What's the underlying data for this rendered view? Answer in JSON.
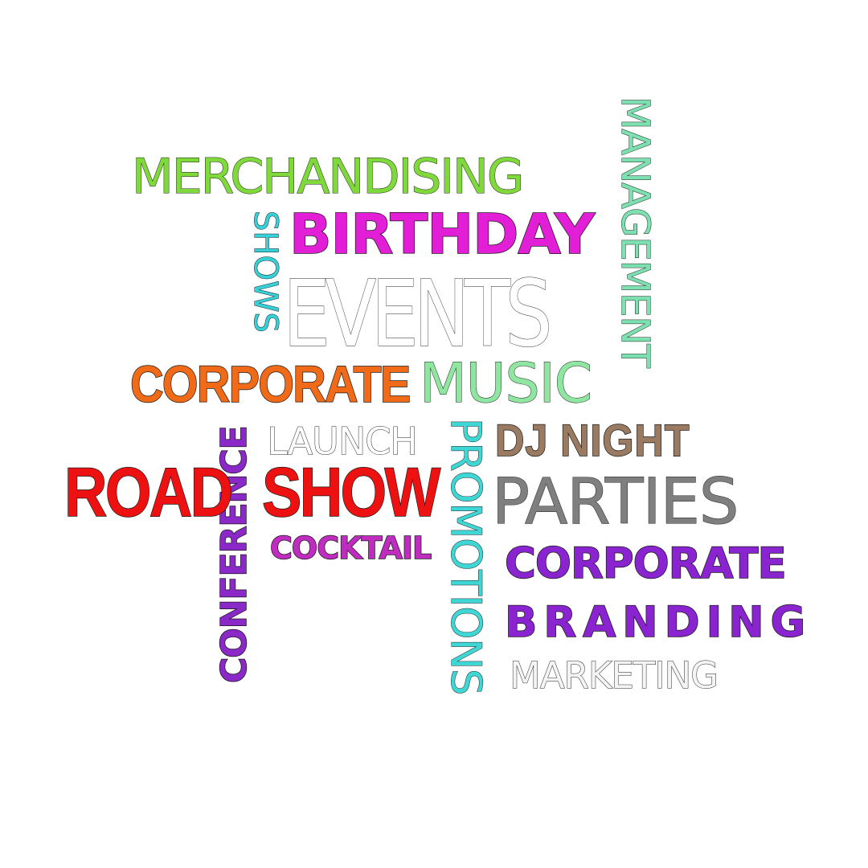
{
  "words": {
    "merchandising": "MERCHANDISING",
    "management": "MANAGEMENT",
    "shows": "SHOWS",
    "birthday": "BIRTHDAY",
    "events": "EVENTS",
    "corporate_orange": "CORPORATE",
    "music": "MUSIC",
    "conference": "CONFERENCE",
    "launch": "LAUNCH",
    "promotions": "PROMOTIONS",
    "dj_night": "DJ NIGHT",
    "road": "ROAD",
    "show": "SHOW",
    "parties": "PARTIES",
    "cocktail": "COCKTAIL",
    "corporate_purple": "CORPORATE",
    "branding": "BRANDING",
    "marketing": "MARKETING"
  },
  "colors": {
    "merchandising": "#7fd93a",
    "management": "#7de0b0",
    "shows": "#35d0d8",
    "birthday": "#e21fd6",
    "events": "#ffffff",
    "corporate_orange": "#f06a18",
    "music": "#8fe6a0",
    "conference": "#8a28c8",
    "launch": "#ffffff",
    "promotions": "#3fd6d6",
    "dj_night": "#9a7a60",
    "road": "#ee1111",
    "show": "#ee1111",
    "parties": "#7f7f7f",
    "cocktail": "#c02cc0",
    "corporate_purple": "#8a24d0",
    "branding": "#8a24d0",
    "marketing": "#f4f4f4"
  }
}
